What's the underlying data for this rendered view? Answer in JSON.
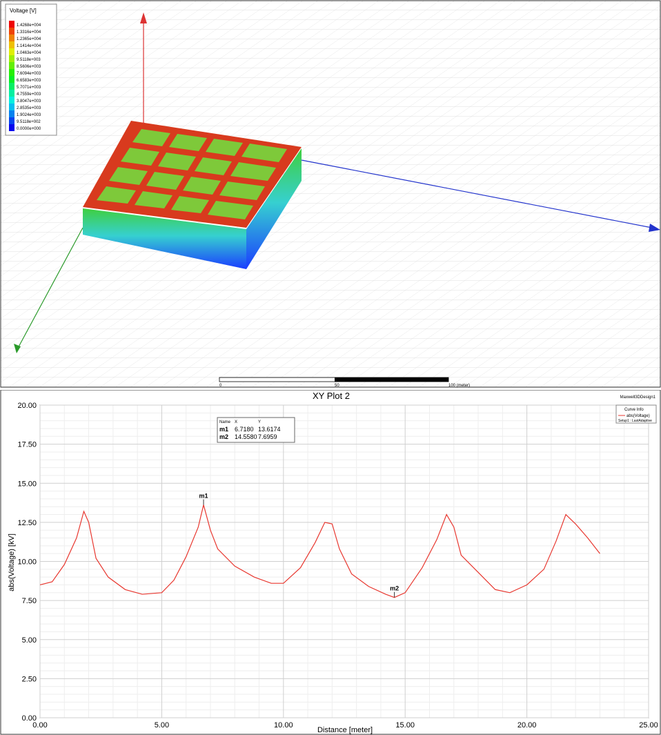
{
  "field_plot": {
    "legend_title": "Voltage [V]",
    "legend_labels": [
      "1.4268e+004",
      "1.3316e+004",
      "1.2365e+004",
      "1.1414e+004",
      "1.0463e+004",
      "9.5118e+003",
      "8.5606e+003",
      "7.6094e+003",
      "6.6583e+003",
      "5.7071e+003",
      "4.7559e+003",
      "3.8047e+003",
      "2.8535e+003",
      "1.9024e+003",
      "9.5118e+002",
      "0.0000e+000"
    ],
    "scale_labels": [
      "0",
      "50",
      "100 (meter)"
    ]
  },
  "window_label": "Maxwell3DDesign1",
  "chart_data": {
    "type": "line",
    "title": "XY Plot 2",
    "x_label": "Distance [meter]",
    "y_label": "abs(Voltage) [kV]",
    "xlim": [
      0,
      25
    ],
    "ylim": [
      0,
      20
    ],
    "xticks": [
      {
        "value": 0,
        "label": "0.00"
      },
      {
        "value": 5,
        "label": "5.00"
      },
      {
        "value": 10,
        "label": "10.00"
      },
      {
        "value": 15,
        "label": "15.00"
      },
      {
        "value": 20,
        "label": "20.00"
      },
      {
        "value": 25,
        "label": "25.00"
      }
    ],
    "yticks": [
      {
        "value": 0,
        "label": "0.00"
      },
      {
        "value": 2.5,
        "label": "2.50"
      },
      {
        "value": 5,
        "label": "5.00"
      },
      {
        "value": 7.5,
        "label": "7.50"
      },
      {
        "value": 10,
        "label": "10.00"
      },
      {
        "value": 12.5,
        "label": "12.50"
      },
      {
        "value": 15,
        "label": "15.00"
      },
      {
        "value": 17.5,
        "label": "17.50"
      },
      {
        "value": 20,
        "label": "20.00"
      }
    ],
    "grid": true,
    "legend_title": "Curve Info",
    "legend_setup": "Setup1 : LastAdaptive",
    "series": [
      {
        "name": "abs(Voltage)",
        "color": "#e8372f",
        "x": [
          0,
          0.5,
          1.0,
          1.5,
          1.8,
          2.0,
          2.3,
          2.8,
          3.5,
          4.2,
          5.0,
          5.5,
          6.0,
          6.5,
          6.718,
          7.0,
          7.3,
          8.0,
          8.8,
          9.5,
          10.0,
          10.7,
          11.3,
          11.7,
          12.0,
          12.3,
          12.8,
          13.5,
          14.2,
          14.558,
          15.0,
          15.7,
          16.3,
          16.7,
          17.0,
          17.3,
          18.0,
          18.7,
          19.3,
          20.0,
          20.7,
          21.2,
          21.6,
          22.0,
          22.5,
          23.0
        ],
        "values": [
          8.5,
          8.7,
          9.8,
          11.5,
          13.2,
          12.5,
          10.2,
          9.0,
          8.2,
          7.9,
          8.0,
          8.8,
          10.3,
          12.2,
          13.6174,
          12.0,
          10.8,
          9.7,
          9.0,
          8.6,
          8.6,
          9.6,
          11.2,
          12.5,
          12.4,
          10.8,
          9.2,
          8.4,
          7.9,
          7.6959,
          8.0,
          9.6,
          11.4,
          13.0,
          12.2,
          10.4,
          9.3,
          8.2,
          8.0,
          8.5,
          9.5,
          11.3,
          13.0,
          12.4,
          11.5,
          10.5
        ]
      }
    ],
    "marker_table_header": [
      "Name",
      "X",
      "Y"
    ],
    "markers": [
      {
        "name": "m1",
        "x": {
          "value": 6.718,
          "label": "6.7180"
        },
        "y": 13.6174
      },
      {
        "name": "m2",
        "x": {
          "value": 14.558,
          "label": "14.5580"
        },
        "y": 7.6959
      }
    ]
  }
}
